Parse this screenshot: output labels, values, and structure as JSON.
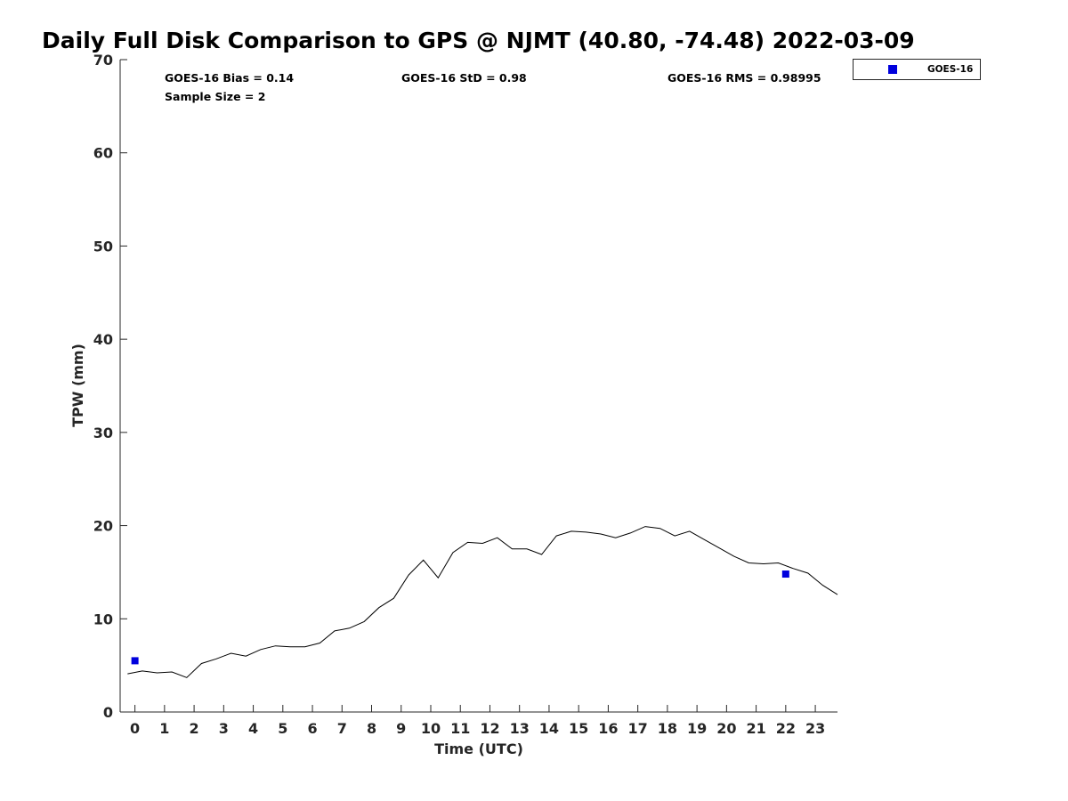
{
  "chart_data": {
    "type": "line",
    "title": "Daily Full Disk Comparison to GPS @ NJMT (40.80, -74.48) 2022-03-09",
    "xlabel": "Time (UTC)",
    "ylabel": "TPW (mm)",
    "xlim": [
      -0.5,
      23.75
    ],
    "ylim": [
      0,
      70
    ],
    "x_ticks": [
      "0",
      "1",
      "2",
      "3",
      "4",
      "5",
      "6",
      "7",
      "8",
      "9",
      "10",
      "11",
      "12",
      "13",
      "14",
      "15",
      "16",
      "17",
      "18",
      "19",
      "20",
      "21",
      "22",
      "23"
    ],
    "y_ticks": [
      "0",
      "10",
      "20",
      "30",
      "40",
      "50",
      "60",
      "70"
    ],
    "grid": false,
    "legend_position": "top-right",
    "stats": {
      "bias": "GOES-16 Bias = 0.14",
      "std": "GOES-16 StD = 0.98",
      "rms": "GOES-16 RMS = 0.98995",
      "sample": "Sample Size = 2"
    },
    "series": [
      {
        "type": "line",
        "color": "#000000",
        "x": [
          -0.25,
          0.25,
          0.75,
          1.25,
          1.75,
          2.25,
          2.75,
          3.25,
          3.75,
          4.25,
          4.75,
          5.25,
          5.75,
          6.25,
          6.75,
          7.25,
          7.75,
          8.25,
          8.75,
          9.25,
          9.75,
          10.25,
          10.75,
          11.25,
          11.75,
          12.25,
          12.75,
          13.25,
          13.75,
          14.25,
          14.75,
          15.25,
          15.75,
          16.25,
          16.75,
          17.25,
          17.75,
          18.25,
          18.75,
          19.25,
          19.75,
          20.25,
          20.75,
          21.25,
          21.75,
          22.25,
          22.75,
          23.25,
          23.75
        ],
        "y": [
          4.1,
          4.4,
          4.2,
          4.3,
          3.7,
          5.2,
          5.7,
          6.3,
          6.0,
          6.7,
          7.1,
          7.0,
          7.0,
          7.4,
          8.7,
          9.0,
          9.7,
          11.2,
          12.2,
          14.7,
          16.3,
          14.4,
          17.1,
          18.2,
          18.1,
          18.7,
          17.5,
          17.5,
          16.9,
          18.9,
          19.4,
          19.3,
          19.1,
          18.7,
          19.2,
          19.9,
          19.7,
          18.9,
          19.4,
          18.5,
          17.6,
          16.7,
          16.0,
          15.9,
          16.0,
          15.4,
          14.9,
          13.6,
          12.6
        ]
      },
      {
        "name": "GOES-16",
        "type": "scatter",
        "color": "#0000dd",
        "x": [
          0,
          22
        ],
        "y": [
          5.5,
          14.8
        ]
      }
    ]
  }
}
